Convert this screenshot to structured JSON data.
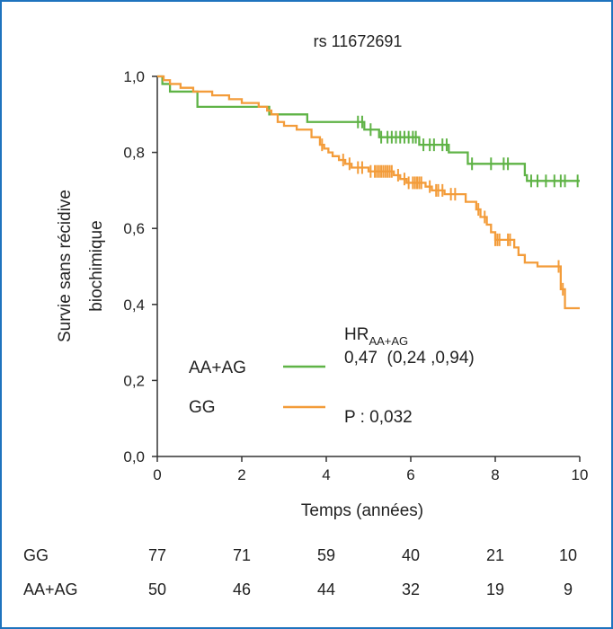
{
  "chart_data": {
    "type": "line",
    "title": "rs 11672691",
    "xlabel": "Temps (années)",
    "ylabel_lines": [
      "Survie sans récidive",
      "biochimique"
    ],
    "xlim": [
      0,
      10
    ],
    "ylim": [
      0,
      1
    ],
    "x_ticks": [
      "0",
      "2",
      "4",
      "6",
      "8",
      "10"
    ],
    "y_ticks": [
      "0,0",
      "0,2",
      "0,4",
      "0,6",
      "0,8",
      "1,0"
    ],
    "grid": false,
    "legend_position": "bottom-left",
    "series": [
      {
        "name": "AA+AG",
        "color": "#5fb346",
        "steps": [
          [
            0,
            1.0
          ],
          [
            0.12,
            0.98
          ],
          [
            0.3,
            0.96
          ],
          [
            0.95,
            0.92
          ],
          [
            2.65,
            0.9
          ],
          [
            3.55,
            0.88
          ],
          [
            4.9,
            0.86
          ],
          [
            5.25,
            0.84
          ],
          [
            6.2,
            0.82
          ],
          [
            6.9,
            0.8
          ],
          [
            7.35,
            0.77
          ],
          [
            8.7,
            0.74
          ],
          [
            8.75,
            0.725
          ],
          [
            10.0,
            0.725
          ]
        ],
        "censors": [
          4.75,
          4.85,
          5.05,
          5.3,
          5.45,
          5.55,
          5.65,
          5.75,
          5.85,
          5.95,
          6.05,
          6.12,
          6.3,
          6.45,
          6.55,
          6.75,
          6.85,
          7.45,
          7.9,
          8.2,
          8.3,
          8.85,
          9.0,
          9.2,
          9.4,
          9.55,
          9.65,
          9.95
        ]
      },
      {
        "name": "GG",
        "color": "#f39c3a",
        "steps": [
          [
            0,
            1.0
          ],
          [
            0.15,
            0.99
          ],
          [
            0.3,
            0.98
          ],
          [
            0.55,
            0.97
          ],
          [
            0.85,
            0.96
          ],
          [
            1.3,
            0.95
          ],
          [
            1.7,
            0.94
          ],
          [
            2.0,
            0.93
          ],
          [
            2.4,
            0.92
          ],
          [
            2.6,
            0.91
          ],
          [
            2.7,
            0.9
          ],
          [
            2.85,
            0.88
          ],
          [
            3.0,
            0.87
          ],
          [
            3.3,
            0.86
          ],
          [
            3.65,
            0.84
          ],
          [
            3.85,
            0.82
          ],
          [
            3.95,
            0.81
          ],
          [
            4.05,
            0.8
          ],
          [
            4.15,
            0.79
          ],
          [
            4.3,
            0.78
          ],
          [
            4.45,
            0.77
          ],
          [
            4.6,
            0.76
          ],
          [
            5.0,
            0.75
          ],
          [
            5.6,
            0.74
          ],
          [
            5.75,
            0.73
          ],
          [
            5.9,
            0.72
          ],
          [
            6.35,
            0.71
          ],
          [
            6.5,
            0.7
          ],
          [
            6.8,
            0.69
          ],
          [
            7.3,
            0.67
          ],
          [
            7.55,
            0.65
          ],
          [
            7.65,
            0.63
          ],
          [
            7.8,
            0.61
          ],
          [
            7.9,
            0.59
          ],
          [
            8.0,
            0.57
          ],
          [
            8.45,
            0.55
          ],
          [
            8.55,
            0.53
          ],
          [
            8.7,
            0.51
          ],
          [
            9.0,
            0.5
          ],
          [
            9.55,
            0.44
          ],
          [
            9.65,
            0.39
          ],
          [
            10.0,
            0.39
          ]
        ],
        "censors": [
          3.9,
          4.4,
          4.55,
          4.75,
          4.85,
          5.05,
          5.15,
          5.2,
          5.25,
          5.3,
          5.35,
          5.4,
          5.45,
          5.5,
          5.55,
          5.7,
          5.85,
          5.95,
          6.05,
          6.1,
          6.15,
          6.2,
          6.25,
          6.45,
          6.6,
          6.65,
          6.75,
          6.95,
          7.05,
          7.6,
          7.75,
          8.0,
          8.05,
          8.1,
          8.3,
          8.35,
          9.5,
          9.6
        ]
      }
    ],
    "legend": [
      {
        "label": "AA+AG",
        "color": "#5fb346"
      },
      {
        "label": "GG",
        "color": "#f39c3a"
      }
    ],
    "stats": {
      "hr_main": "HR",
      "hr_sub": "AA+AG",
      "hr_value": "0,47  (0,24 ,0,94)",
      "p_value": "P : 0,032"
    },
    "risk_table": {
      "rows": [
        {
          "label": "GG",
          "values": [
            "77",
            "71",
            "59",
            "40",
            "21",
            "10"
          ]
        },
        {
          "label": "AA+AG",
          "values": [
            "50",
            "46",
            "44",
            "32",
            "19",
            "9"
          ]
        }
      ]
    }
  }
}
